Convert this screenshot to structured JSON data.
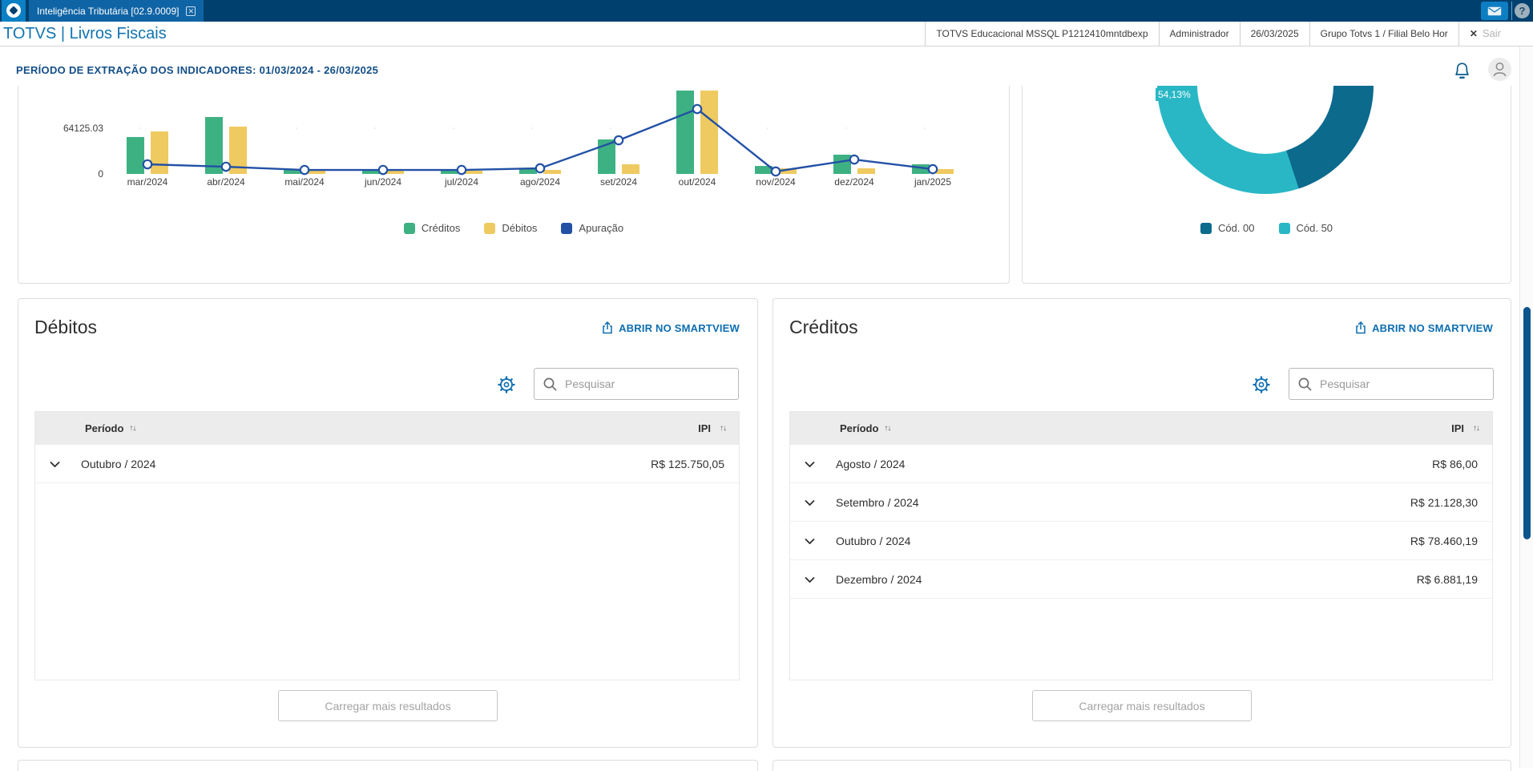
{
  "topbar": {
    "tab_label": "Inteligência Tributária [02.9.0009]"
  },
  "appbar": {
    "title": "TOTVS | Livros Fiscais",
    "status_cells": [
      "TOTVS Educacional MSSQL P1212410mntdbexp",
      "Administrador",
      "26/03/2025",
      "Grupo Totvs 1 / Filial Belo Hor"
    ],
    "exit_label": "Sair"
  },
  "header": {
    "period_title": "PERÍODO DE EXTRAÇÃO DOS INDICADORES: 01/03/2024 - 26/03/2025"
  },
  "chart_data": [
    {
      "type": "bar",
      "subtype": "bar+line combo, top of plot cropped by page scroll",
      "categories": [
        "mar/2024",
        "abr/2024",
        "mai/2024",
        "jun/2024",
        "jul/2024",
        "ago/2024",
        "set/2024",
        "out/2024",
        "nov/2024",
        "dez/2024",
        "jan/2025"
      ],
      "series": [
        {
          "name": "Créditos",
          "kind": "bar",
          "color": "#3eb183",
          "values": [
            51800,
            79900,
            5600,
            5600,
            5600,
            6800,
            48400,
            117000,
            11200,
            27000,
            13500
          ]
        },
        {
          "name": "Débitos",
          "kind": "bar",
          "color": "#efca60",
          "values": [
            59600,
            66400,
            4500,
            4500,
            4500,
            5600,
            13500,
            117000,
            7900,
            7900,
            6800
          ]
        },
        {
          "name": "Apuração",
          "kind": "line",
          "color": "#2351a5",
          "values": [
            13500,
            10100,
            5600,
            5600,
            5600,
            7900,
            47200,
            91100,
            3400,
            20200,
            6700
          ]
        }
      ],
      "yticks": [
        {
          "label": "0",
          "value": 0
        },
        {
          "label": "64125.03",
          "value": 64125.03
        }
      ],
      "ylim": [
        0,
        145000
      ],
      "grid": "single dotted gridline at 64125.03",
      "legend_position": "bottom"
    },
    {
      "type": "pie",
      "subtype": "donut, top cropped by page scroll",
      "segments": [
        {
          "label": "Cód. 00",
          "value": 45.87,
          "color": "#0c6a8d"
        },
        {
          "label": "Cód. 50",
          "value": 54.13,
          "color": "#29b7c5"
        }
      ],
      "data_label": "54,13%",
      "legend_position": "bottom"
    }
  ],
  "panels": {
    "debitos": {
      "title": "Débitos",
      "smartview_label": "ABRIR NO SMARTVIEW",
      "search_placeholder": "Pesquisar",
      "columns": [
        "Período",
        "IPI"
      ],
      "rows": [
        {
          "period": "Outubro / 2024",
          "value": "R$ 125.750,05"
        }
      ],
      "load_more_label": "Carregar mais resultados"
    },
    "creditos": {
      "title": "Créditos",
      "smartview_label": "ABRIR NO SMARTVIEW",
      "search_placeholder": "Pesquisar",
      "columns": [
        "Período",
        "IPI"
      ],
      "rows": [
        {
          "period": "Agosto / 2024",
          "value": "R$ 86,00"
        },
        {
          "period": "Setembro / 2024",
          "value": "R$ 21.128,30"
        },
        {
          "period": "Outubro / 2024",
          "value": "R$ 78.460,19"
        },
        {
          "period": "Dezembro / 2024",
          "value": "R$ 6.881,19"
        }
      ],
      "load_more_label": "Carregar mais resultados"
    }
  },
  "colors": {
    "topbar": "#00406f",
    "tab": "#0f64a5",
    "accent_link": "#0c6eb1",
    "title_blue": "#1274b0",
    "period_blue": "#134e87",
    "credits_green": "#3eb183",
    "debits_yellow": "#efca60",
    "line_blue": "#2351a5",
    "donut_dark": "#0c6a8d",
    "donut_light": "#29b7c5",
    "scrollbar_thumb": "#0c548c"
  }
}
